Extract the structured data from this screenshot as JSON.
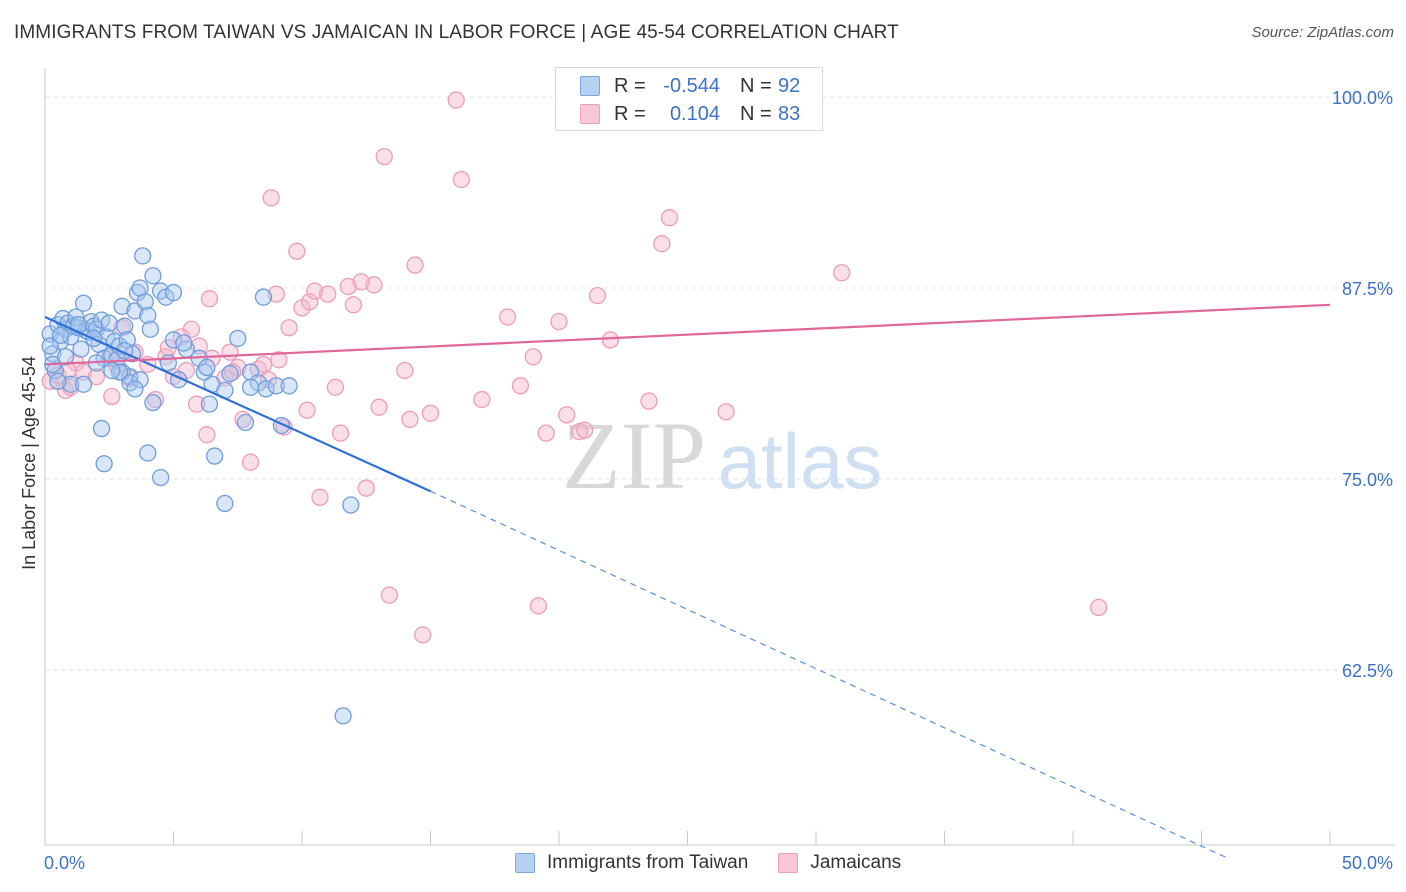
{
  "title": "IMMIGRANTS FROM TAIWAN VS JAMAICAN IN LABOR FORCE | AGE 45-54 CORRELATION CHART",
  "source": "Source: ZipAtlas.com",
  "watermark": {
    "zip": "ZIP",
    "atlas": "atlas"
  },
  "colors": {
    "blue": "#2f6fd6",
    "blue_fill": "#a9c8f0",
    "pink": "#e0679a",
    "pink_fill": "#f5b8cc",
    "axis_text": "#3b72c8",
    "grid": "#e2e2e2"
  },
  "legend_top": [
    {
      "r_label": "R =",
      "r_value": "-0.544",
      "n_label": "N =",
      "n_value": "92",
      "color": "#2f6fd6",
      "fill": "#b7d1f3"
    },
    {
      "r_label": "R =",
      "r_value": "0.104",
      "n_label": "N =",
      "n_value": "83",
      "color": "#e0679a",
      "fill": "#f8c8d7"
    }
  ],
  "legend_bottom": [
    {
      "label": "Immigrants from Taiwan",
      "color": "#2f6fd6",
      "fill": "#b7d1f3"
    },
    {
      "label": "Jamaicans",
      "color": "#e0679a",
      "fill": "#f8c8d7"
    }
  ],
  "chart_data": {
    "type": "scatter",
    "title": "IMMIGRANTS FROM TAIWAN VS JAMAICAN IN LABOR FORCE | AGE 45-54 CORRELATION CHART",
    "xlabel": "",
    "ylabel": "In Labor Force | Age 45-54",
    "xlim": [
      0,
      50
    ],
    "ylim": [
      50,
      102
    ],
    "x_tick_labels": [
      "0.0%",
      "50.0%"
    ],
    "y_ticks": [
      62.5,
      75.0,
      87.5,
      100.0
    ],
    "y_tick_labels": [
      "62.5%",
      "75.0%",
      "87.5%",
      "100.0%"
    ],
    "grid": true,
    "series": [
      {
        "name": "Immigrants from Taiwan",
        "trend": {
          "x": [
            0,
            15
          ],
          "y": [
            85.6,
            74.2
          ],
          "dashed_to": [
            46,
            50.2
          ]
        },
        "points": [
          [
            0.2,
            84.5
          ],
          [
            0.3,
            83.2
          ],
          [
            0.4,
            82.1
          ],
          [
            0.5,
            85.1
          ],
          [
            0.6,
            84.0
          ],
          [
            0.7,
            85.5
          ],
          [
            0.8,
            84.8
          ],
          [
            0.9,
            85.2
          ],
          [
            1.0,
            84.3
          ],
          [
            1.1,
            85.0
          ],
          [
            1.2,
            85.6
          ],
          [
            1.3,
            84.9
          ],
          [
            1.4,
            83.5
          ],
          [
            1.5,
            86.5
          ],
          [
            1.6,
            84.7
          ],
          [
            1.7,
            84.6
          ],
          [
            1.8,
            85.3
          ],
          [
            1.9,
            85.0
          ],
          [
            2.0,
            84.8
          ],
          [
            2.1,
            83.8
          ],
          [
            2.2,
            85.4
          ],
          [
            2.3,
            82.9
          ],
          [
            2.4,
            84.3
          ],
          [
            2.5,
            85.2
          ],
          [
            2.6,
            83.1
          ],
          [
            2.7,
            84.0
          ],
          [
            2.8,
            82.8
          ],
          [
            2.9,
            83.7
          ],
          [
            3.0,
            86.3
          ],
          [
            3.1,
            85.0
          ],
          [
            3.2,
            84.1
          ],
          [
            3.3,
            81.7
          ],
          [
            3.4,
            83.2
          ],
          [
            3.5,
            86.0
          ],
          [
            3.6,
            87.2
          ],
          [
            3.7,
            87.5
          ],
          [
            3.8,
            89.6
          ],
          [
            3.9,
            86.6
          ],
          [
            4.0,
            85.7
          ],
          [
            4.2,
            88.3
          ],
          [
            4.5,
            87.3
          ],
          [
            4.7,
            86.9
          ],
          [
            5.0,
            84.1
          ],
          [
            5.5,
            83.5
          ],
          [
            6.0,
            82.9
          ],
          [
            6.5,
            81.2
          ],
          [
            7.0,
            80.8
          ],
          [
            7.2,
            81.9
          ],
          [
            7.5,
            84.2
          ],
          [
            8.0,
            82.0
          ],
          [
            8.3,
            81.3
          ],
          [
            8.6,
            80.9
          ],
          [
            9.0,
            81.1
          ],
          [
            8.5,
            86.9
          ],
          [
            9.2,
            78.5
          ],
          [
            1.0,
            81.2
          ],
          [
            2.2,
            78.3
          ],
          [
            2.3,
            76.0
          ],
          [
            3.0,
            82.0
          ],
          [
            3.3,
            81.3
          ],
          [
            3.7,
            81.5
          ],
          [
            4.0,
            76.7
          ],
          [
            4.2,
            80.0
          ],
          [
            4.5,
            75.1
          ],
          [
            6.2,
            82.0
          ],
          [
            6.6,
            76.5
          ],
          [
            7.0,
            73.4
          ],
          [
            8.0,
            81.0
          ],
          [
            11.9,
            73.3
          ],
          [
            11.6,
            59.5
          ],
          [
            0.3,
            82.5
          ],
          [
            0.5,
            81.4
          ],
          [
            1.5,
            81.2
          ],
          [
            2.0,
            82.6
          ],
          [
            2.9,
            82.0
          ],
          [
            4.8,
            82.6
          ],
          [
            5.2,
            81.5
          ],
          [
            6.4,
            79.9
          ],
          [
            7.8,
            78.7
          ],
          [
            9.5,
            81.1
          ],
          [
            0.8,
            83.0
          ],
          [
            1.9,
            84.2
          ],
          [
            3.1,
            83.4
          ],
          [
            4.1,
            84.8
          ],
          [
            5.4,
            83.9
          ],
          [
            6.3,
            82.3
          ],
          [
            0.2,
            83.7
          ],
          [
            2.6,
            82.1
          ],
          [
            3.5,
            80.9
          ],
          [
            5.0,
            87.2
          ],
          [
            0.6,
            84.4
          ],
          [
            1.3,
            85.1
          ]
        ]
      },
      {
        "name": "Jamaicans",
        "trend": {
          "x": [
            0,
            50
          ],
          "y": [
            82.5,
            86.4
          ]
        },
        "points": [
          [
            0.2,
            81.4
          ],
          [
            0.5,
            81.8
          ],
          [
            0.8,
            80.8
          ],
          [
            1.2,
            82.6
          ],
          [
            1.5,
            82.0
          ],
          [
            2.0,
            81.7
          ],
          [
            2.5,
            82.9
          ],
          [
            2.6,
            80.4
          ],
          [
            3.0,
            84.9
          ],
          [
            3.5,
            83.3
          ],
          [
            4.0,
            82.5
          ],
          [
            4.3,
            80.2
          ],
          [
            4.7,
            83.0
          ],
          [
            5.0,
            81.7
          ],
          [
            5.5,
            82.1
          ],
          [
            5.7,
            84.8
          ],
          [
            6.0,
            83.7
          ],
          [
            6.3,
            77.9
          ],
          [
            6.5,
            82.9
          ],
          [
            7.0,
            81.6
          ],
          [
            7.2,
            83.3
          ],
          [
            7.5,
            82.3
          ],
          [
            7.7,
            78.9
          ],
          [
            8.0,
            76.1
          ],
          [
            8.3,
            82.2
          ],
          [
            8.5,
            82.5
          ],
          [
            8.7,
            81.5
          ],
          [
            9.0,
            87.1
          ],
          [
            9.3,
            78.4
          ],
          [
            9.5,
            84.9
          ],
          [
            9.8,
            89.9
          ],
          [
            10.0,
            86.2
          ],
          [
            10.3,
            86.6
          ],
          [
            10.5,
            87.3
          ],
          [
            10.7,
            73.8
          ],
          [
            11.0,
            87.1
          ],
          [
            11.3,
            81.0
          ],
          [
            11.5,
            78.0
          ],
          [
            11.8,
            87.6
          ],
          [
            12.0,
            86.4
          ],
          [
            12.5,
            74.4
          ],
          [
            12.8,
            87.7
          ],
          [
            13.0,
            79.7
          ],
          [
            13.2,
            96.1
          ],
          [
            13.4,
            67.4
          ],
          [
            14.0,
            82.1
          ],
          [
            14.2,
            78.9
          ],
          [
            14.4,
            89.0
          ],
          [
            14.7,
            64.8
          ],
          [
            15.0,
            79.3
          ],
          [
            16.0,
            99.8
          ],
          [
            16.2,
            94.6
          ],
          [
            17.0,
            80.2
          ],
          [
            18.0,
            85.6
          ],
          [
            18.5,
            81.1
          ],
          [
            19.0,
            83.0
          ],
          [
            19.2,
            66.7
          ],
          [
            19.5,
            78.0
          ],
          [
            20.0,
            85.3
          ],
          [
            20.3,
            79.2
          ],
          [
            20.8,
            78.1
          ],
          [
            21.0,
            78.2
          ],
          [
            21.5,
            87.0
          ],
          [
            22.0,
            84.1
          ],
          [
            23.5,
            80.1
          ],
          [
            24.0,
            90.4
          ],
          [
            24.3,
            92.1
          ],
          [
            26.5,
            79.4
          ],
          [
            31.0,
            88.5
          ],
          [
            41.0,
            66.6
          ],
          [
            6.4,
            86.8
          ],
          [
            8.8,
            93.4
          ],
          [
            10.2,
            79.5
          ],
          [
            12.3,
            87.9
          ],
          [
            4.8,
            83.6
          ],
          [
            5.9,
            79.9
          ],
          [
            7.3,
            82.0
          ],
          [
            1.0,
            81.0
          ],
          [
            3.3,
            81.6
          ],
          [
            9.1,
            82.8
          ],
          [
            2.8,
            82.4
          ],
          [
            0.9,
            82.1
          ],
          [
            5.3,
            84.3
          ]
        ]
      }
    ]
  }
}
